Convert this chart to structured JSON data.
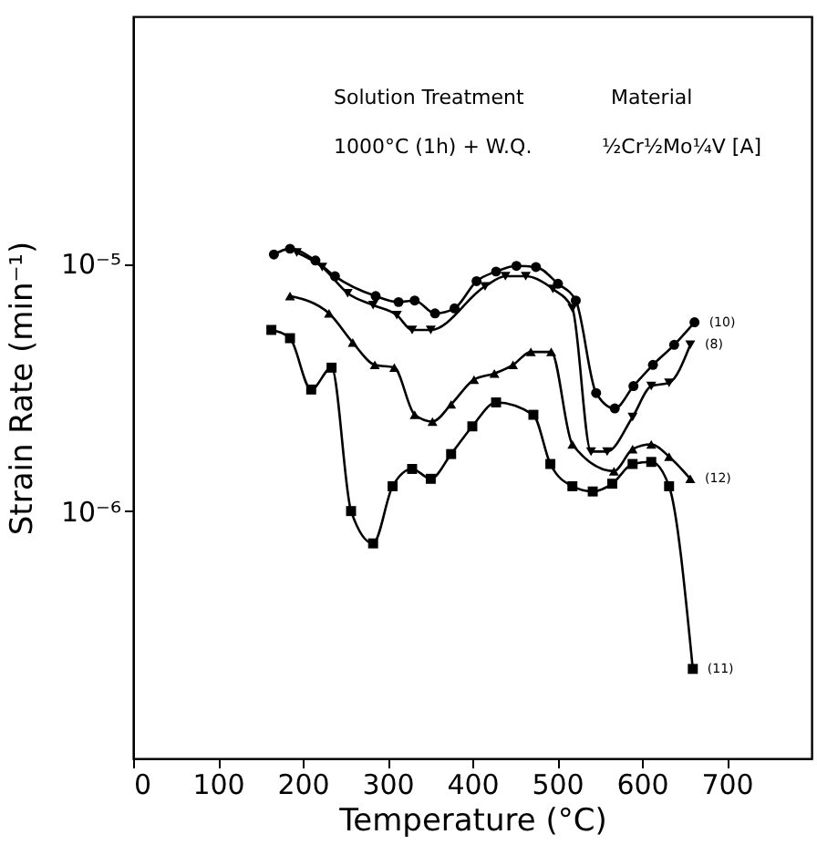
{
  "chart_data": {
    "type": "line",
    "xlabel": "Temperature (°C)",
    "ylabel": "Strain Rate (min⁻¹)",
    "annotations": [
      "Solution Treatment",
      "1000°C (1h) + W.Q.",
      "Material",
      "½Cr½Mo¼V [A]"
    ],
    "xlim": [
      0,
      800
    ],
    "xticks": [
      0,
      100,
      200,
      300,
      400,
      500,
      600,
      700
    ],
    "ylim": [
      1e-07,
      0.0001
    ],
    "yticks": [
      {
        "value": 1e-05,
        "label": "10⁻⁵"
      },
      {
        "value": 1e-06,
        "label": "10⁻⁶"
      }
    ],
    "log": "y",
    "grid": false,
    "series": [
      {
        "name": "(10)",
        "color": "#000000",
        "marker": "circle",
        "x": [
          166,
          185,
          215,
          238,
          286,
          313,
          332,
          356,
          379,
          405,
          428,
          452,
          475,
          501,
          522,
          546,
          568,
          590,
          613,
          638,
          662
        ],
        "values": [
          1.09e-05,
          1.15e-05,
          1.03e-05,
          8.9e-06,
          7.4e-06,
          7e-06,
          7.1e-06,
          6.3e-06,
          6.6e-06,
          8.5e-06,
          9.3e-06,
          9.8e-06,
          9.7e-06,
          8.3e-06,
          7.1e-06,
          3e-06,
          2.6e-06,
          3.2e-06,
          3.9e-06,
          4.7e-06,
          5.8e-06
        ]
      },
      {
        "name": "(8)",
        "color": "#000000",
        "marker": "triangle-down",
        "x": [
          193,
          223,
          253,
          283,
          311,
          329,
          351,
          415,
          439,
          463,
          495,
          518,
          540,
          559,
          589,
          611,
          632,
          657
        ],
        "values": [
          1.11e-05,
          9.7e-06,
          7.6e-06,
          6.8e-06,
          6.2e-06,
          5.4e-06,
          5.4e-06,
          8.1e-06,
          8.9e-06,
          8.9e-06,
          7.9e-06,
          6.6e-06,
          1.74e-06,
          1.74e-06,
          2.4e-06,
          3.2e-06,
          3.3e-06,
          4.7e-06
        ]
      },
      {
        "name": "(12)",
        "color": "#000000",
        "marker": "triangle",
        "x": [
          185,
          231,
          259,
          285,
          308,
          332,
          353,
          375,
          402,
          426,
          448,
          469,
          493,
          518,
          567,
          589,
          611,
          632,
          657
        ],
        "values": [
          7.4e-06,
          6.3e-06,
          4.8e-06,
          3.9e-06,
          3.8e-06,
          2.45e-06,
          2.3e-06,
          2.7e-06,
          3.4e-06,
          3.6e-06,
          3.9e-06,
          4.4e-06,
          4.4e-06,
          1.86e-06,
          1.45e-06,
          1.78e-06,
          1.86e-06,
          1.66e-06,
          1.35e-06
        ]
      },
      {
        "name": "(11)",
        "color": "#000000",
        "marker": "square",
        "x": [
          163,
          185,
          210,
          234,
          257,
          283,
          306,
          329,
          351,
          375,
          400,
          428,
          472,
          492,
          518,
          542,
          565,
          589,
          611,
          632,
          660
        ],
        "values": [
          5.4e-06,
          5e-06,
          3.1e-06,
          3.8e-06,
          1e-06,
          7.4e-07,
          1.26e-06,
          1.48e-06,
          1.35e-06,
          1.7e-06,
          2.2e-06,
          2.75e-06,
          2.45e-06,
          1.55e-06,
          1.26e-06,
          1.2e-06,
          1.29e-06,
          1.55e-06,
          1.58e-06,
          1.26e-06,
          2.3e-07
        ]
      }
    ]
  }
}
